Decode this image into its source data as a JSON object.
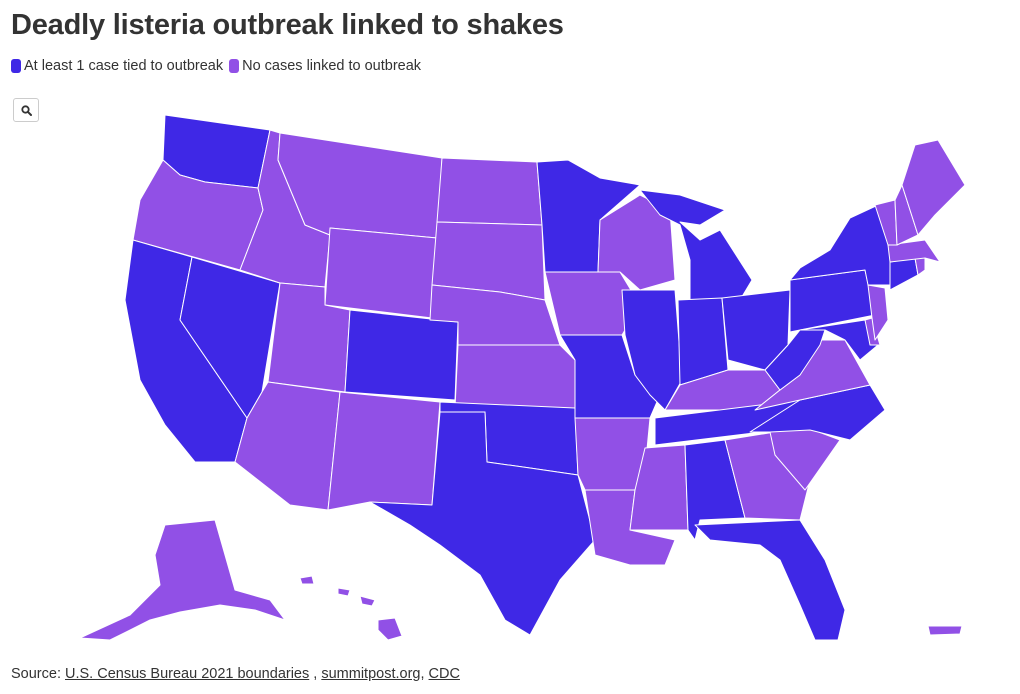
{
  "title": "Deadly listeria outbreak linked to shakes",
  "legend": [
    {
      "label": "At least 1 case tied to outbreak",
      "color": "#3f28e6"
    },
    {
      "label": "No cases linked to outbreak",
      "color": "#9150e6"
    }
  ],
  "search": {
    "icon": "search-icon"
  },
  "source": {
    "prefix": "Source: ",
    "links": [
      "U.S. Census Bureau 2021 boundaries",
      "summitpost.org",
      "CDC"
    ],
    "sep1": " , ",
    "sep2": ", "
  },
  "map_data": {
    "states_with_cases": [
      "WA",
      "CA",
      "NV",
      "CO",
      "TX",
      "OK",
      "MN",
      "MO",
      "IL",
      "IN",
      "MI",
      "OH",
      "TN",
      "AL",
      "FL",
      "NC",
      "WV",
      "PA",
      "NY",
      "MD",
      "CT"
    ],
    "states_without_cases": [
      "OR",
      "ID",
      "MT",
      "WY",
      "UT",
      "AZ",
      "NM",
      "ND",
      "SD",
      "NE",
      "KS",
      "IA",
      "WI",
      "AR",
      "LA",
      "MS",
      "KY",
      "VA",
      "GA",
      "SC",
      "ME",
      "NH",
      "VT",
      "MA",
      "RI",
      "NJ",
      "DE",
      "AK",
      "HI",
      "PR"
    ]
  }
}
